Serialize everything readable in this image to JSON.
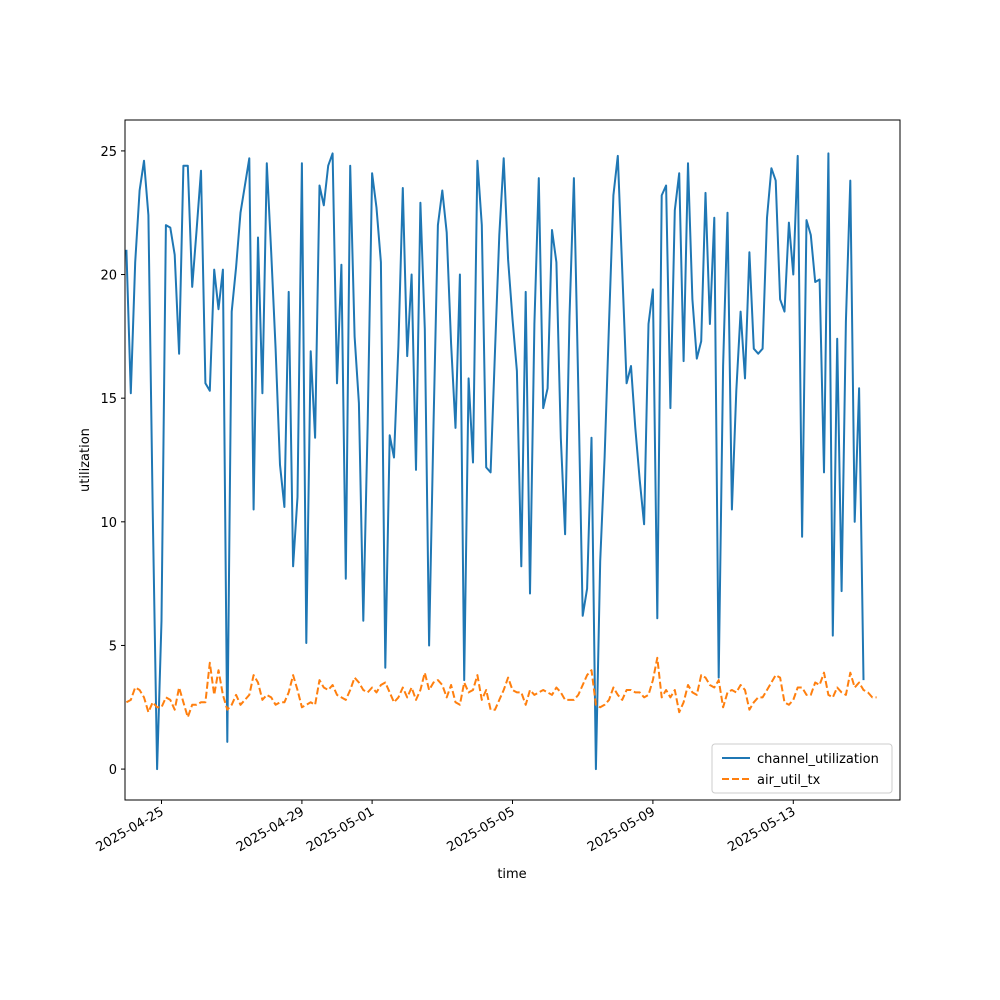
{
  "chart_data": {
    "type": "line",
    "title": "",
    "xlabel": "time",
    "ylabel": "utilization",
    "x_start": "2025-04-24",
    "x_step_hours": 3,
    "xlim": [
      "2025-04-23T23:02",
      "2025-05-16T00:58"
    ],
    "ylim": [
      -1.25,
      26.25
    ],
    "x_ticks": [
      "2025-04-25",
      "2025-04-29",
      "2025-05-01",
      "2025-05-05",
      "2025-05-09",
      "2025-05-13"
    ],
    "y_ticks": [
      0,
      5,
      10,
      15,
      20,
      25
    ],
    "grid": false,
    "legend_position": "lower-right",
    "series": [
      {
        "name": "channel_utilization",
        "color": "#1f77b4",
        "dash": "solid",
        "values": [
          21.0,
          15.2,
          20.5,
          23.4,
          24.6,
          22.4,
          10.5,
          0.0,
          6.0,
          22.0,
          21.9,
          20.8,
          16.8,
          24.4,
          24.4,
          19.5,
          21.8,
          24.2,
          15.6,
          15.3,
          20.2,
          18.6,
          20.2,
          1.1,
          18.5,
          20.3,
          22.5,
          23.6,
          24.7,
          10.5,
          21.5,
          15.2,
          24.5,
          20.9,
          17.0,
          12.3,
          10.6,
          19.3,
          8.2,
          11.0,
          24.5,
          5.1,
          16.9,
          13.4,
          23.6,
          22.8,
          24.4,
          24.9,
          15.6,
          20.4,
          7.7,
          24.4,
          17.5,
          14.8,
          6.0,
          14.0,
          24.1,
          22.7,
          20.5,
          4.1,
          13.5,
          12.6,
          17.1,
          23.5,
          16.7,
          20.0,
          12.1,
          22.9,
          17.8,
          5.0,
          13.9,
          22.0,
          23.4,
          21.7,
          17.2,
          13.8,
          20.0,
          3.6,
          15.8,
          12.4,
          24.6,
          22.0,
          12.2,
          12.0,
          16.9,
          21.6,
          24.7,
          20.6,
          18.2,
          16.1,
          8.2,
          19.3,
          7.1,
          18.0,
          23.9,
          14.6,
          15.4,
          21.8,
          20.5,
          13.4,
          9.5,
          18.3,
          23.9,
          15.4,
          6.2,
          7.3,
          13.4,
          0.0,
          8.4,
          12.6,
          18.0,
          23.2,
          24.8,
          20.2,
          15.6,
          16.3,
          13.8,
          11.7,
          9.9,
          18.0,
          19.4,
          6.1,
          23.2,
          23.6,
          14.6,
          22.6,
          24.1,
          16.5,
          24.5,
          19.0,
          16.6,
          17.3,
          23.3,
          18.0,
          22.3,
          3.7,
          16.3,
          22.5,
          10.5,
          15.3,
          18.5,
          15.8,
          20.9,
          17.0,
          16.8,
          17.0,
          22.3,
          24.3,
          23.8,
          19.0,
          18.5,
          22.1,
          20.0,
          24.8,
          9.4,
          22.2,
          21.6,
          19.7,
          19.8,
          12.0,
          24.9,
          5.4,
          17.4,
          7.2,
          18.1,
          23.8,
          10.0,
          15.4,
          3.6
        ]
      },
      {
        "name": "air_util_tx",
        "color": "#ff7f0e",
        "dash": "dashed",
        "values": [
          2.7,
          2.8,
          3.3,
          3.2,
          2.9,
          2.3,
          2.7,
          2.5,
          2.5,
          2.9,
          2.8,
          2.4,
          3.3,
          2.7,
          2.1,
          2.6,
          2.6,
          2.7,
          2.7,
          4.3,
          3.0,
          4.0,
          3.0,
          2.4,
          2.6,
          3.0,
          2.6,
          2.8,
          3.0,
          3.8,
          3.5,
          2.8,
          3.0,
          2.9,
          2.6,
          2.7,
          2.7,
          3.1,
          3.8,
          3.2,
          2.5,
          2.6,
          2.7,
          2.6,
          3.6,
          3.3,
          3.2,
          3.4,
          3.0,
          2.9,
          2.8,
          3.2,
          3.7,
          3.5,
          3.2,
          3.1,
          3.3,
          3.1,
          3.4,
          3.5,
          3.1,
          2.7,
          2.9,
          3.3,
          2.9,
          3.3,
          2.8,
          3.2,
          3.9,
          3.2,
          3.5,
          3.6,
          3.4,
          2.9,
          3.4,
          2.7,
          2.6,
          3.5,
          3.1,
          3.2,
          3.8,
          2.8,
          3.2,
          2.4,
          2.4,
          2.8,
          3.2,
          3.7,
          3.2,
          3.1,
          3.1,
          2.6,
          3.2,
          3.0,
          3.1,
          3.2,
          3.1,
          3.0,
          3.3,
          3.1,
          2.8,
          2.8,
          2.8,
          3.0,
          3.4,
          3.8,
          4.0,
          2.6,
          2.5,
          2.6,
          2.8,
          3.3,
          3.0,
          2.8,
          3.2,
          3.2,
          3.1,
          3.1,
          2.9,
          3.0,
          3.6,
          4.5,
          2.9,
          3.2,
          2.9,
          3.2,
          2.3,
          2.7,
          3.4,
          3.1,
          3.0,
          3.8,
          3.7,
          3.4,
          3.3,
          3.6,
          2.5,
          3.1,
          3.2,
          3.1,
          3.4,
          3.2,
          2.4,
          2.7,
          2.9,
          2.9,
          3.2,
          3.5,
          3.8,
          3.7,
          2.7,
          2.6,
          2.8,
          3.3,
          3.3,
          3.0,
          3.0,
          3.5,
          3.4,
          3.9,
          3.0,
          2.9,
          3.3,
          3.1,
          3.0,
          3.9,
          3.3,
          3.5,
          3.2,
          3.1,
          2.9,
          2.9
        ]
      }
    ]
  }
}
